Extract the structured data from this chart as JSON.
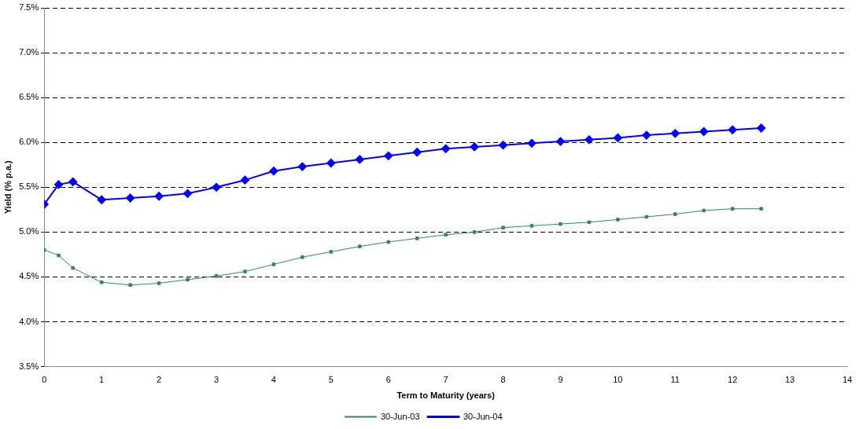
{
  "chart_data": {
    "type": "line",
    "xlabel": "Term to Maturity (years)",
    "ylabel": "Yield (% p.a.)",
    "x": [
      0,
      0.25,
      0.5,
      1,
      1.5,
      2,
      2.5,
      3,
      3.5,
      4,
      4.5,
      5,
      5.5,
      6,
      6.5,
      7,
      7.5,
      8,
      8.5,
      9,
      9.5,
      10,
      10.5,
      11,
      11.5,
      12,
      12.5
    ],
    "series": [
      {
        "name": "30-Jun-03",
        "color": "#2e8b57",
        "marker": "square",
        "values": [
          4.8,
          4.74,
          4.6,
          4.44,
          4.41,
          4.43,
          4.47,
          4.51,
          4.56,
          4.64,
          4.72,
          4.78,
          4.84,
          4.89,
          4.93,
          4.97,
          5.0,
          5.05,
          5.07,
          5.09,
          5.11,
          5.14,
          5.17,
          5.2,
          5.24,
          5.26,
          5.26
        ]
      },
      {
        "name": "30-Jun-04",
        "color": "#0000ff",
        "marker": "diamond",
        "values": [
          5.31,
          5.53,
          5.56,
          5.36,
          5.38,
          5.4,
          5.43,
          5.5,
          5.58,
          5.68,
          5.73,
          5.77,
          5.81,
          5.85,
          5.89,
          5.93,
          5.95,
          5.97,
          5.99,
          6.01,
          6.03,
          6.05,
          6.08,
          6.1,
          6.12,
          6.14,
          6.16
        ]
      }
    ],
    "xlim": [
      0,
      14
    ],
    "xticks": [
      0,
      1,
      2,
      3,
      4,
      5,
      6,
      7,
      8,
      9,
      10,
      11,
      12,
      13,
      14
    ],
    "ylim": [
      3.5,
      7.5
    ],
    "yticks": [
      {
        "value": 3.5,
        "label": "3.5%"
      },
      {
        "value": 4,
        "label": "4.0%"
      },
      {
        "value": 4.5,
        "label": "4.5%"
      },
      {
        "value": 5,
        "label": "5.0%"
      },
      {
        "value": 5.5,
        "label": "5.5%"
      },
      {
        "value": 6,
        "label": "6.0%"
      },
      {
        "value": 6.5,
        "label": "6.5%"
      },
      {
        "value": 7,
        "label": "7.0%"
      },
      {
        "value": 7.5,
        "label": "7.5%"
      }
    ],
    "grid": "y",
    "legend": "bottom"
  }
}
